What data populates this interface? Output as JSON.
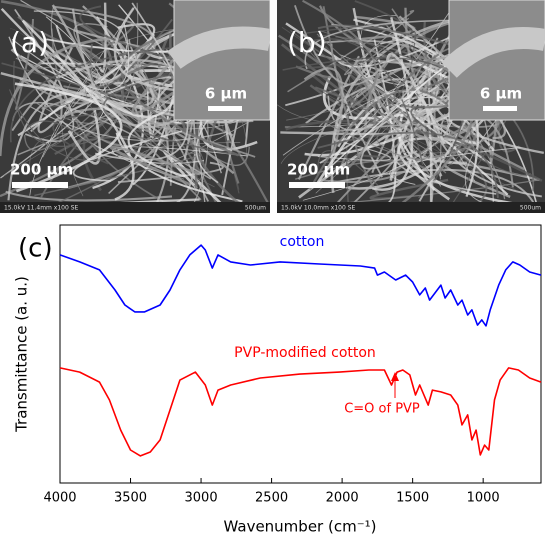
{
  "panels": [
    {
      "label": "(a)",
      "inset_scale": "6 μm",
      "scale": "200 μm",
      "info": "15.0kV 11.4mm x100 SE",
      "info_scale": "500um"
    },
    {
      "label": "(b)",
      "inset_scale": "6 μm",
      "scale": "200 μm",
      "info": "15.0kV 10.0mm x100 SE",
      "info_scale": "500um"
    }
  ],
  "chart_data": {
    "type": "line",
    "panel_label": "(c)",
    "xlabel": "Wavenumber (cm⁻¹)",
    "ylabel": "Transmittance (a. u.)",
    "xlim": [
      4000,
      590
    ],
    "xticks": [
      4000,
      3500,
      3000,
      2500,
      2000,
      1500,
      1000
    ],
    "ylim": [
      0,
      100
    ],
    "annotations": [
      "C=O of PVP"
    ],
    "series": [
      {
        "name": "cotton",
        "color": "#0000ff",
        "x": [
          4000,
          3860,
          3720,
          3610,
          3540,
          3470,
          3400,
          3290,
          3220,
          3150,
          3080,
          3000,
          2970,
          2920,
          2880,
          2790,
          2650,
          2440,
          2160,
          1870,
          1770,
          1750,
          1700,
          1620,
          1550,
          1500,
          1450,
          1410,
          1380,
          1300,
          1270,
          1230,
          1180,
          1150,
          1110,
          1080,
          1040,
          1010,
          980,
          950,
          890,
          840,
          790,
          740,
          670,
          590
        ],
        "values": [
          88.4,
          85.7,
          82.6,
          74.8,
          69.0,
          66.3,
          66.3,
          69.0,
          74.8,
          82.6,
          88.4,
          92.2,
          90.3,
          83.3,
          88.4,
          85.7,
          84.5,
          85.7,
          84.9,
          84.1,
          83.3,
          80.6,
          81.8,
          78.7,
          80.6,
          77.9,
          72.9,
          75.6,
          70.9,
          76.7,
          71.7,
          74.8,
          69.0,
          70.9,
          65.1,
          67.1,
          61.2,
          63.2,
          60.9,
          67.1,
          76.7,
          82.6,
          85.7,
          84.5,
          81.8,
          80.6
        ]
      },
      {
        "name": "PVP-modified cotton",
        "color": "#ff0000",
        "x": [
          4000,
          3860,
          3720,
          3650,
          3570,
          3500,
          3430,
          3360,
          3290,
          3220,
          3150,
          3040,
          2970,
          2920,
          2880,
          2790,
          2580,
          2300,
          2020,
          1810,
          1700,
          1650,
          1610,
          1570,
          1520,
          1480,
          1450,
          1390,
          1360,
          1300,
          1230,
          1180,
          1150,
          1110,
          1080,
          1050,
          1020,
          990,
          960,
          920,
          880,
          820,
          750,
          670,
          590
        ],
        "values": [
          44.6,
          43.0,
          39.1,
          32.2,
          20.5,
          12.8,
          10.5,
          12.0,
          16.7,
          28.3,
          39.9,
          43.0,
          38.0,
          30.2,
          36.0,
          38.0,
          40.7,
          42.2,
          43.0,
          43.8,
          43.8,
          38.0,
          43.0,
          43.8,
          41.9,
          34.1,
          38.0,
          30.2,
          36.0,
          35.3,
          34.1,
          30.2,
          22.5,
          26.4,
          16.7,
          20.5,
          10.9,
          14.7,
          12.8,
          32.2,
          39.9,
          44.6,
          43.8,
          40.7,
          39.1
        ]
      }
    ]
  }
}
